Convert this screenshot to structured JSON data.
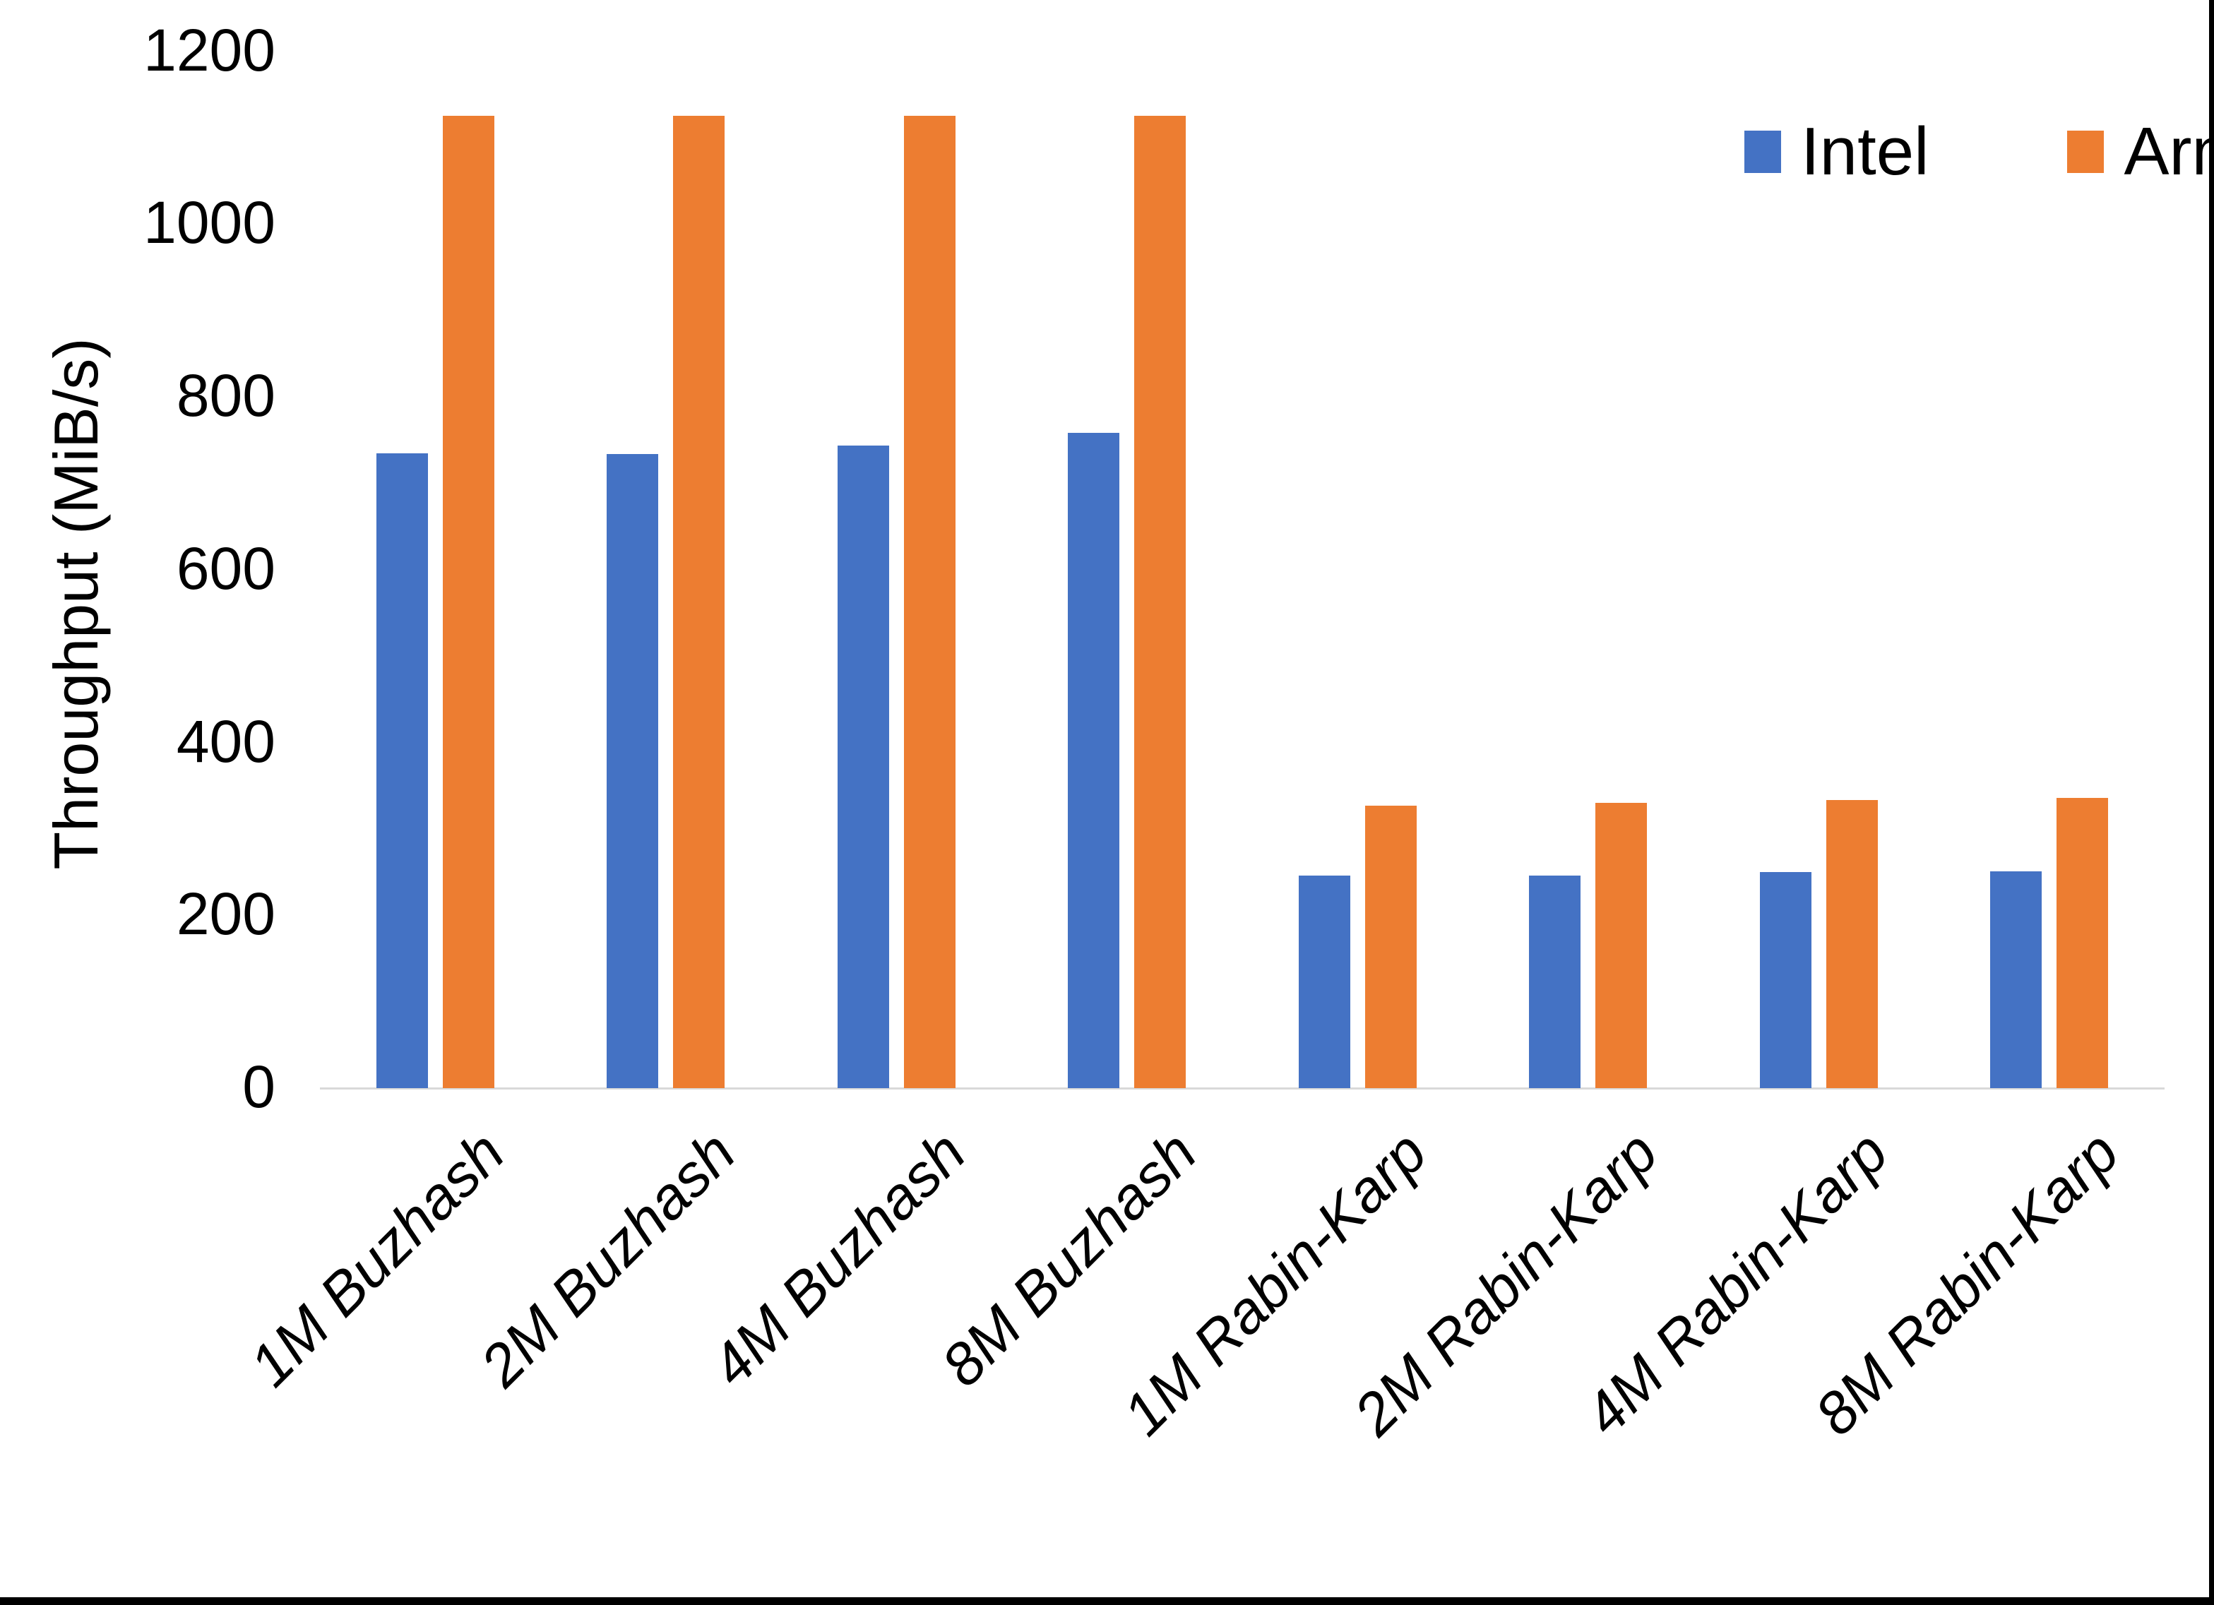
{
  "figure": {
    "background_color": "#FFFFFF",
    "frame_border_color": "#000000",
    "axis_line_color": "#D9D9D9"
  },
  "legend": {
    "items": [
      {
        "label": "Intel",
        "color": "#4472C4"
      },
      {
        "label": "Arm",
        "color": "#ED7D31"
      }
    ]
  },
  "chart_data": {
    "type": "bar",
    "title": "",
    "xlabel": "",
    "ylabel": "Throughput (MiB/s)",
    "ylim": [
      0,
      1200
    ],
    "yticks": [
      0,
      200,
      400,
      600,
      800,
      1000,
      1200
    ],
    "grid": false,
    "legend_position": "top-right",
    "categories": [
      "1M Buzhash",
      "2M Buzhash",
      "4M Buzhash",
      "8M Buzhash",
      "1M Rabin-Karp",
      "2M Rabin-Karp",
      "4M Rabin-Karp",
      "8M Rabin-Karp"
    ],
    "series": [
      {
        "name": "Intel",
        "color": "#4472C4",
        "values": [
          735,
          734,
          744,
          758,
          246,
          246,
          250,
          251
        ]
      },
      {
        "name": "Arm",
        "color": "#ED7D31",
        "values": [
          1125,
          1125,
          1125,
          1125,
          327,
          330,
          333,
          336
        ]
      }
    ]
  }
}
